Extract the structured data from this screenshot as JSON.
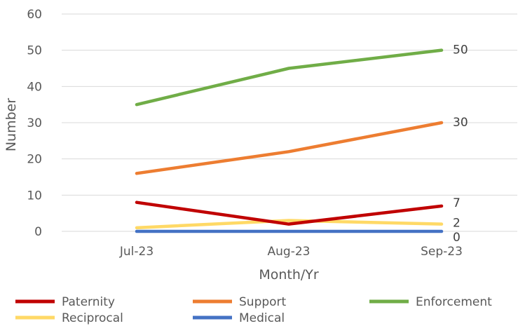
{
  "chart_data": {
    "type": "line",
    "title": "",
    "xlabel": "Month/Yr",
    "ylabel": "Number",
    "categories": [
      "Jul-23",
      "Aug-23",
      "Sep-23"
    ],
    "ylim": [
      0,
      60
    ],
    "yticks": [
      0,
      10,
      20,
      30,
      40,
      50,
      60
    ],
    "grid": true,
    "legend_position": "bottom",
    "series": [
      {
        "name": "Paternity",
        "color": "#C00000",
        "values": [
          8,
          2,
          7
        ],
        "end_label": "7"
      },
      {
        "name": "Support",
        "color": "#ED7D31",
        "values": [
          16,
          22,
          30
        ],
        "end_label": "30"
      },
      {
        "name": "Enforcement",
        "color": "#70AD47",
        "values": [
          35,
          45,
          50
        ],
        "end_label": "50"
      },
      {
        "name": "Reciprocal",
        "color": "#FFD966",
        "values": [
          1,
          3,
          2
        ],
        "end_label": "2"
      },
      {
        "name": "Medical",
        "color": "#4472C4",
        "values": [
          0,
          0,
          0
        ],
        "end_label": "0"
      }
    ]
  }
}
